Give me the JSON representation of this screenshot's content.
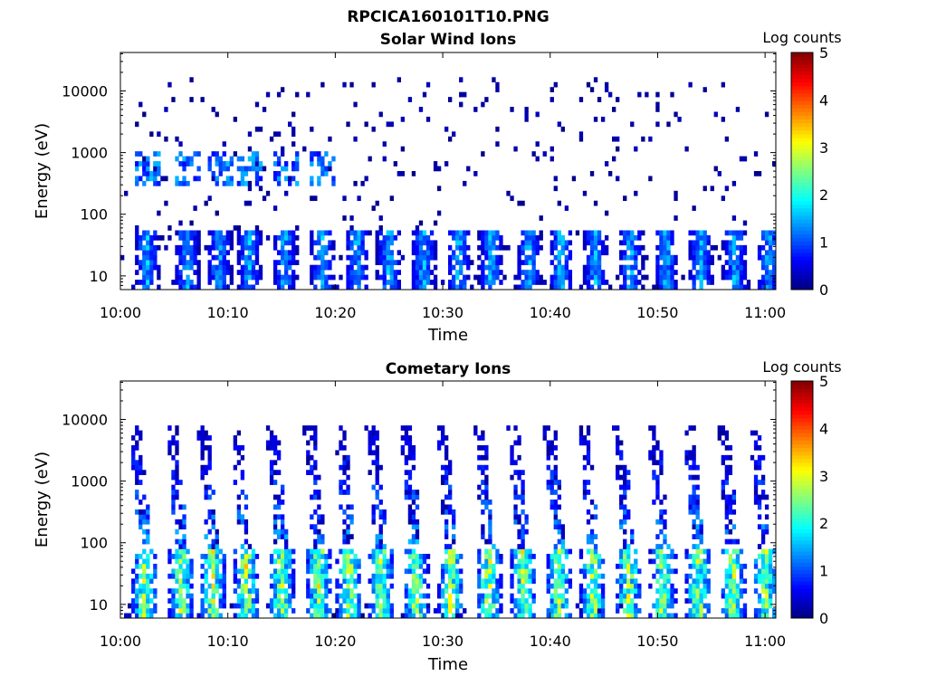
{
  "figure": {
    "title_line1": "RPCICA160101T10.PNG"
  },
  "chart_data": [
    {
      "type": "heatmap",
      "title": "Solar Wind Ions",
      "xlabel": "Time",
      "ylabel": "Energy (eV)",
      "x_ticks": [
        "10:00",
        "10:10",
        "10:20",
        "10:30",
        "10:40",
        "10:50",
        "11:00"
      ],
      "xlim": [
        "10:00",
        "11:01"
      ],
      "y_scale": "log",
      "ylim": [
        6,
        42000
      ],
      "y_ticks": [
        10,
        100,
        1000,
        10000
      ],
      "y_tick_labels": [
        "10",
        "100",
        "1000",
        "10000"
      ],
      "colorbar": {
        "label": "Log counts",
        "min": 0,
        "max": 5,
        "ticks": [
          "0",
          "1",
          "2",
          "3",
          "4",
          "5"
        ],
        "colormap": "jet"
      },
      "bursts_minutes": [
        2.5,
        6.2,
        9.2,
        12.0,
        15.3,
        18.8,
        22.0,
        25.0,
        28.2,
        31.5,
        34.5,
        38.0,
        41.0,
        44.2,
        47.5,
        50.8,
        54.0,
        57.2,
        60.3
      ],
      "main_energy_eV": [
        8,
        60
      ],
      "main_peak_log_counts": 1.9,
      "secondary_band_eV": [
        300,
        1000
      ],
      "background": "sparse blue counts, log counts 0-1, 15-15000 eV"
    },
    {
      "type": "heatmap",
      "title": "Cometary Ions",
      "xlabel": "Time",
      "ylabel": "Energy (eV)",
      "x_ticks": [
        "10:00",
        "10:10",
        "10:20",
        "10:30",
        "10:40",
        "10:50",
        "11:00"
      ],
      "xlim": [
        "10:00",
        "11:01"
      ],
      "y_scale": "log",
      "ylim": [
        6,
        42000
      ],
      "y_ticks": [
        10,
        100,
        1000,
        10000
      ],
      "y_tick_labels": [
        "10",
        "100",
        "1000",
        "10000"
      ],
      "colorbar": {
        "label": "Log counts",
        "min": 0,
        "max": 5,
        "ticks": [
          "0",
          "1",
          "2",
          "3",
          "4",
          "5"
        ],
        "colormap": "jet"
      },
      "bursts_minutes": [
        2.3,
        5.7,
        8.6,
        11.7,
        15.0,
        18.5,
        21.3,
        24.3,
        27.5,
        30.8,
        34.3,
        37.5,
        40.8,
        44.0,
        47.3,
        50.5,
        53.8,
        57.0,
        60.0
      ],
      "main_energy_eV": [
        8,
        80
      ],
      "main_peak_log_counts": 3.5,
      "dispersion_tail_top_eV": 8000,
      "background": "dispersed high-energy tails, log counts 0-1.5"
    }
  ]
}
